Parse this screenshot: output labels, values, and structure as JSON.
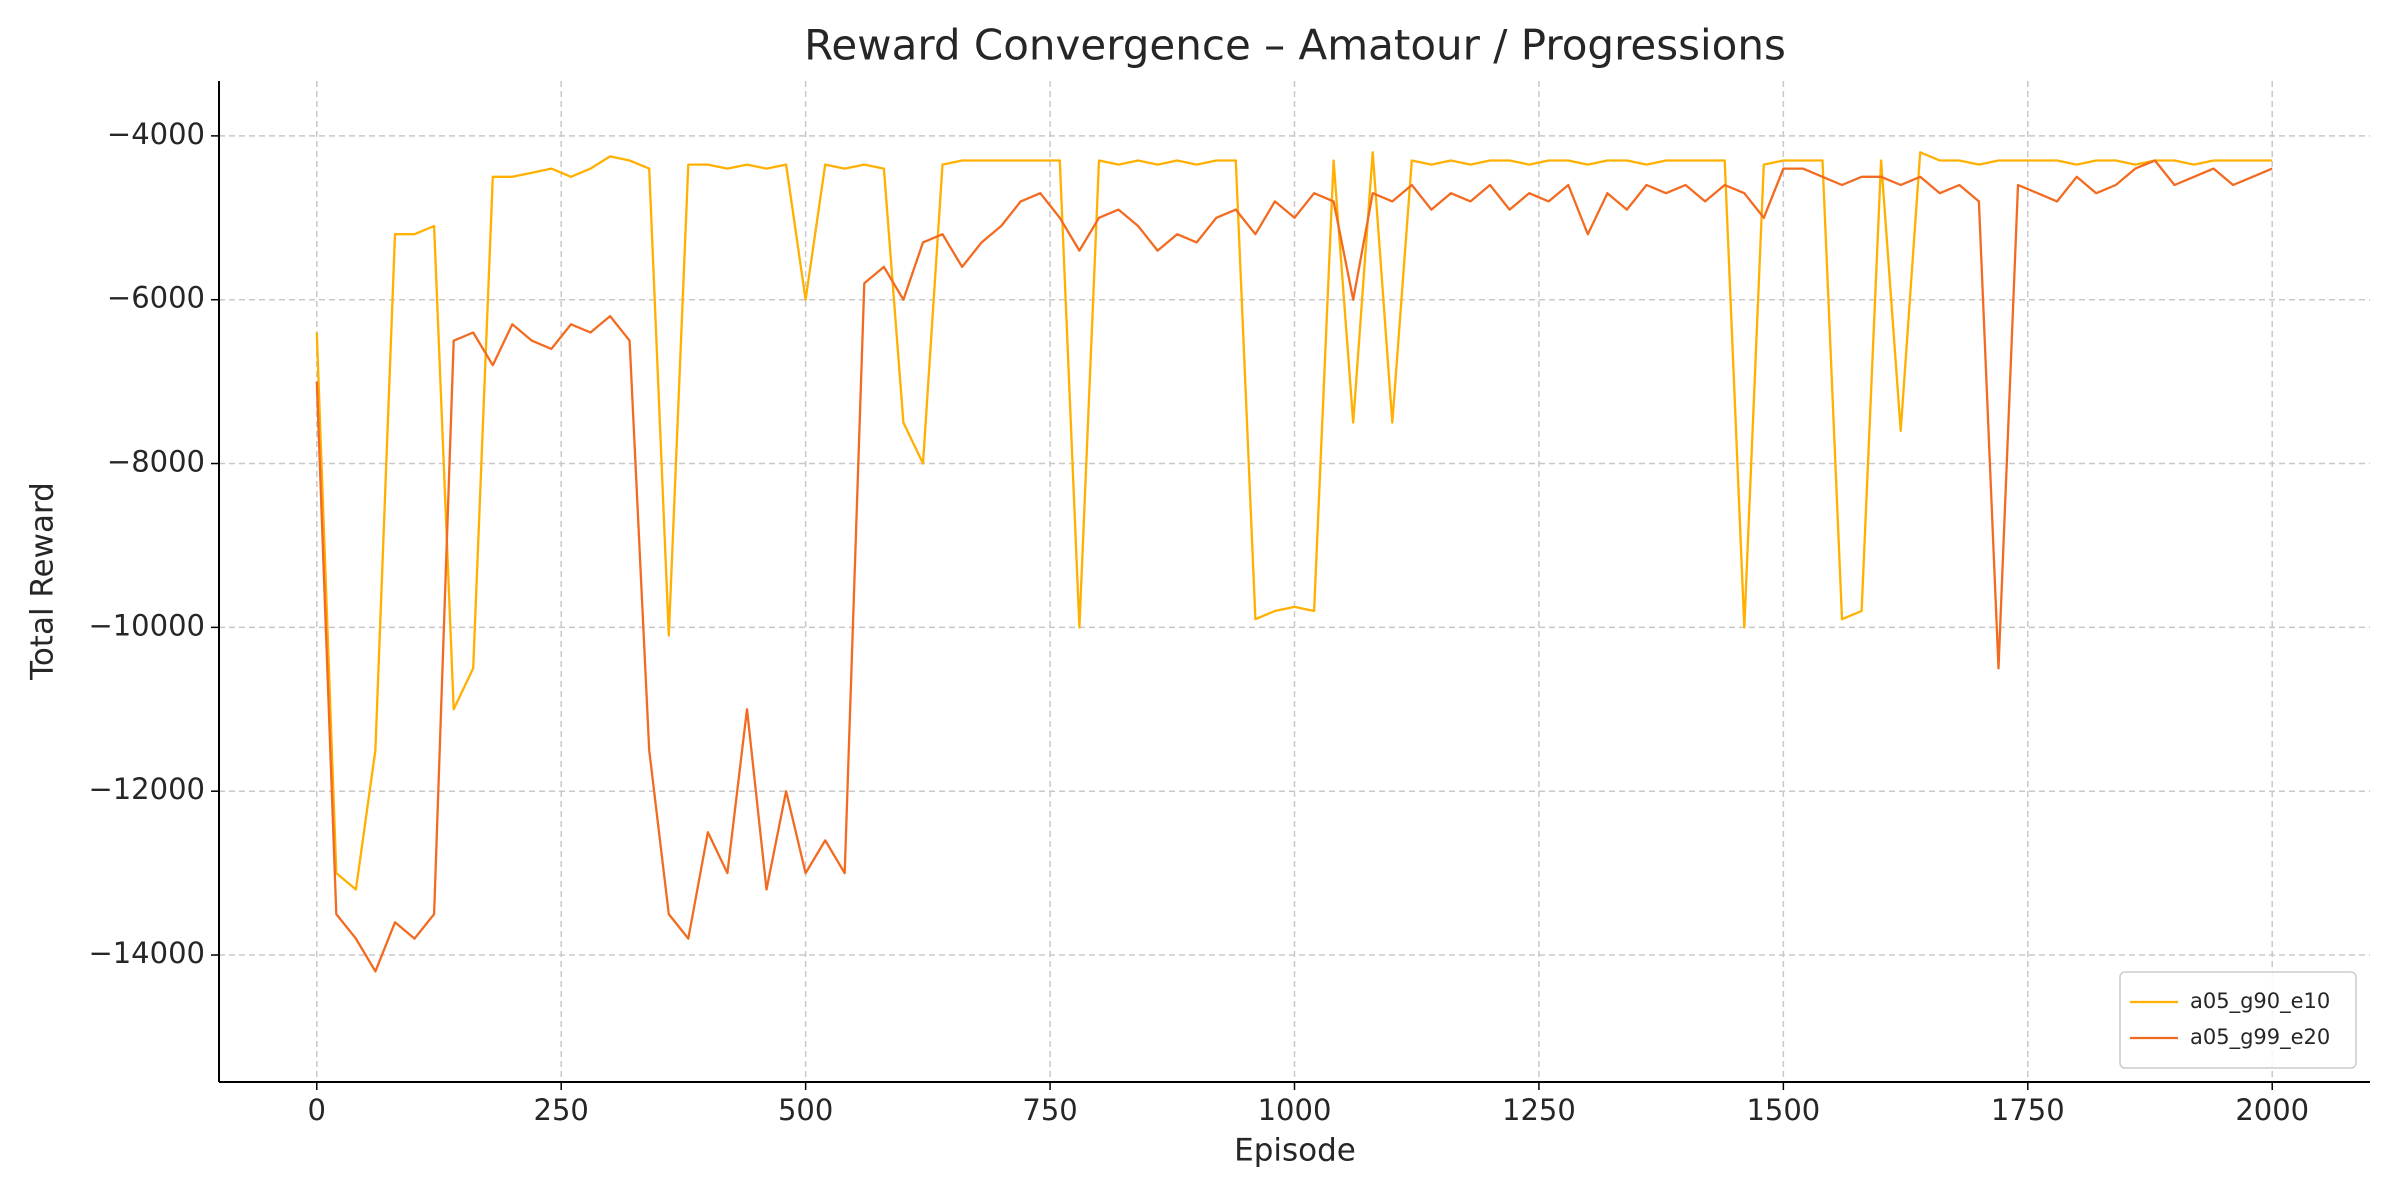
{
  "chart_data": {
    "type": "line",
    "title": "Reward Convergence – Amatour / Progressions",
    "x_label": "Episode",
    "y_label": "Total Reward",
    "x": [
      0,
      20,
      40,
      60,
      80,
      100,
      120,
      140,
      160,
      180,
      200,
      220,
      240,
      260,
      280,
      300,
      320,
      340,
      360,
      380,
      400,
      420,
      440,
      460,
      480,
      500,
      520,
      540,
      560,
      580,
      600,
      620,
      640,
      660,
      680,
      700,
      720,
      740,
      760,
      780,
      800,
      820,
      840,
      860,
      880,
      900,
      920,
      940,
      960,
      980,
      1000,
      1020,
      1040,
      1060,
      1080,
      1100,
      1120,
      1140,
      1160,
      1180,
      1200,
      1220,
      1240,
      1260,
      1280,
      1300,
      1320,
      1340,
      1360,
      1380,
      1400,
      1420,
      1440,
      1460,
      1480,
      1500,
      1520,
      1540,
      1560,
      1580,
      1600,
      1620,
      1640,
      1660,
      1680,
      1700,
      1720,
      1740,
      1760,
      1780,
      1800,
      1820,
      1840,
      1860,
      1880,
      1900,
      1920,
      1940,
      1960,
      1980,
      2000
    ],
    "series": [
      {
        "name": "a05_g90_e10",
        "color": "#ffb000",
        "values": [
          -6400,
          -13000,
          -13200,
          -11500,
          -5200,
          -5200,
          -5100,
          -11000,
          -10500,
          -4500,
          -4500,
          -4450,
          -4400,
          -4500,
          -4400,
          -4250,
          -4300,
          -4400,
          -10100,
          -4350,
          -4350,
          -4400,
          -4350,
          -4400,
          -4350,
          -6000,
          -4350,
          -4400,
          -4350,
          -4400,
          -7500,
          -8000,
          -4350,
          -4300,
          -4300,
          -4300,
          -4300,
          -4300,
          -4300,
          -10000,
          -4300,
          -4350,
          -4300,
          -4350,
          -4300,
          -4350,
          -4300,
          -4300,
          -9900,
          -9800,
          -9750,
          -9800,
          -4300,
          -7500,
          -4200,
          -7500,
          -4300,
          -4350,
          -4300,
          -4350,
          -4300,
          -4300,
          -4350,
          -4300,
          -4300,
          -4350,
          -4300,
          -4300,
          -4350,
          -4300,
          -4300,
          -4300,
          -4300,
          -10000,
          -4350,
          -4300,
          -4300,
          -4300,
          -9900,
          -9800,
          -4300,
          -7600,
          -4200,
          -4300,
          -4300,
          -4350,
          -4300,
          -4300,
          -4300,
          -4300,
          -4350,
          -4300,
          -4300,
          -4350,
          -4300,
          -4300,
          -4350,
          -4300,
          -4300,
          -4300,
          -4300
        ]
      },
      {
        "name": "a05_g99_e20",
        "color": "#f26b21",
        "values": [
          -7000,
          -13500,
          -13800,
          -14200,
          -13600,
          -13800,
          -13500,
          -6500,
          -6400,
          -6800,
          -6300,
          -6500,
          -6600,
          -6300,
          -6400,
          -6200,
          -6500,
          -11500,
          -13500,
          -13800,
          -12500,
          -13000,
          -11000,
          -13200,
          -12000,
          -13000,
          -12600,
          -13000,
          -5800,
          -5600,
          -6000,
          -5300,
          -5200,
          -5600,
          -5300,
          -5100,
          -4800,
          -4700,
          -5000,
          -5400,
          -5000,
          -4900,
          -5100,
          -5400,
          -5200,
          -5300,
          -5000,
          -4900,
          -5200,
          -4800,
          -5000,
          -4700,
          -4800,
          -6000,
          -4700,
          -4800,
          -4600,
          -4900,
          -4700,
          -4800,
          -4600,
          -4900,
          -4700,
          -4800,
          -4600,
          -5200,
          -4700,
          -4900,
          -4600,
          -4700,
          -4600,
          -4800,
          -4600,
          -4700,
          -5000,
          -4400,
          -4400,
          -4500,
          -4600,
          -4500,
          -4500,
          -4600,
          -4500,
          -4700,
          -4600,
          -4800,
          -10500,
          -4600,
          -4700,
          -4800,
          -4500,
          -4700,
          -4600,
          -4400,
          -4300,
          -4600,
          -4500,
          -4400,
          -4600,
          -4500,
          -4400
        ]
      }
    ],
    "xlim": [
      -100,
      2100
    ],
    "ylim": [
      -15550,
      -3330
    ],
    "xticks": [
      0,
      250,
      500,
      750,
      1000,
      1250,
      1500,
      1750,
      2000
    ],
    "yticks": [
      {
        "value": -14000,
        "label": "−14000"
      },
      {
        "value": -12000,
        "label": "−12000"
      },
      {
        "value": -10000,
        "label": "−10000"
      },
      {
        "value": -8000,
        "label": "−8000"
      },
      {
        "value": -6000,
        "label": "−6000"
      },
      {
        "value": -4000,
        "label": "−4000"
      }
    ],
    "grid": true,
    "legend": "lower right"
  }
}
